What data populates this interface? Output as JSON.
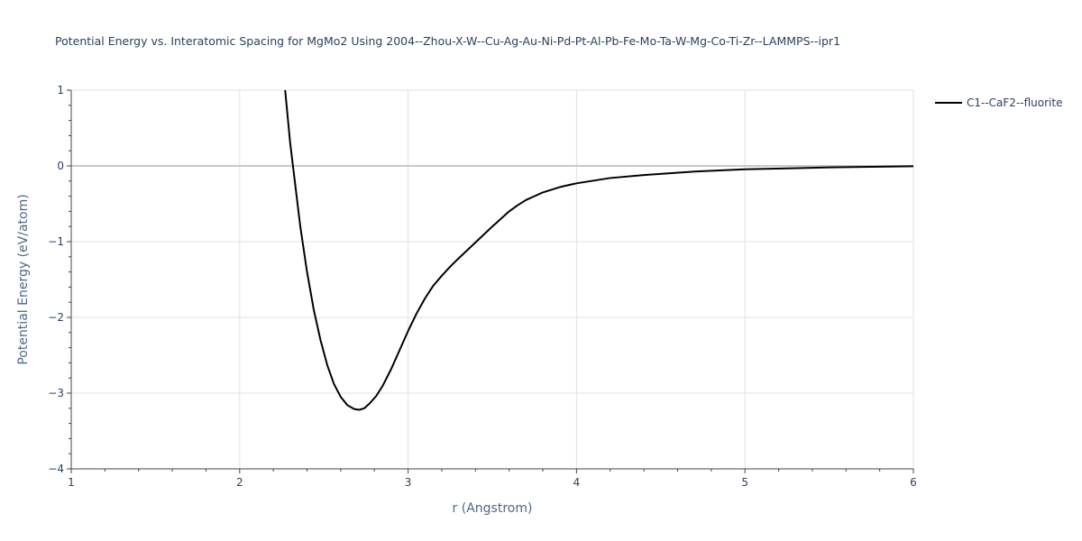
{
  "chart_data": {
    "type": "line",
    "title": "Potential Energy vs. Interatomic Spacing for MgMo2 Using 2004--Zhou-X-W--Cu-Ag-Au-Ni-Pd-Pt-Al-Pb-Fe-Mo-Ta-W-Mg-Co-Ti-Zr--LAMMPS--ipr1",
    "xlabel": "r (Angstrom)",
    "ylabel": "Potential Energy (eV/atom)",
    "xlim": [
      1,
      6
    ],
    "ylim": [
      -4,
      1
    ],
    "x_ticks": [
      1,
      2,
      3,
      4,
      5,
      6
    ],
    "y_ticks": [
      -4,
      -3,
      -2,
      -1,
      0,
      1
    ],
    "x_tick_labels": [
      "1",
      "2",
      "3",
      "4",
      "5",
      "6"
    ],
    "y_tick_labels": [
      "−4",
      "−3",
      "−2",
      "−1",
      "0",
      "1"
    ],
    "grid": true,
    "legend_position": "top-right",
    "line_color": "#000000",
    "series": [
      {
        "name": "C1--CaF2--fluorite",
        "x": [
          2.27,
          2.3,
          2.33,
          2.36,
          2.4,
          2.44,
          2.48,
          2.52,
          2.56,
          2.6,
          2.64,
          2.68,
          2.71,
          2.74,
          2.77,
          2.81,
          2.85,
          2.9,
          2.95,
          3.0,
          3.05,
          3.1,
          3.15,
          3.2,
          3.25,
          3.3,
          3.4,
          3.5,
          3.6,
          3.65,
          3.7,
          3.75,
          3.8,
          3.9,
          4.0,
          4.2,
          4.4,
          4.7,
          5.0,
          5.5,
          6.0
        ],
        "values": [
          1.0,
          0.3,
          -0.25,
          -0.8,
          -1.4,
          -1.9,
          -2.3,
          -2.63,
          -2.88,
          -3.05,
          -3.16,
          -3.21,
          -3.22,
          -3.2,
          -3.14,
          -3.04,
          -2.9,
          -2.68,
          -2.43,
          -2.18,
          -1.95,
          -1.75,
          -1.58,
          -1.45,
          -1.33,
          -1.22,
          -1.01,
          -0.8,
          -0.6,
          -0.52,
          -0.45,
          -0.4,
          -0.35,
          -0.28,
          -0.23,
          -0.16,
          -0.12,
          -0.075,
          -0.045,
          -0.02,
          -0.005
        ]
      }
    ]
  }
}
